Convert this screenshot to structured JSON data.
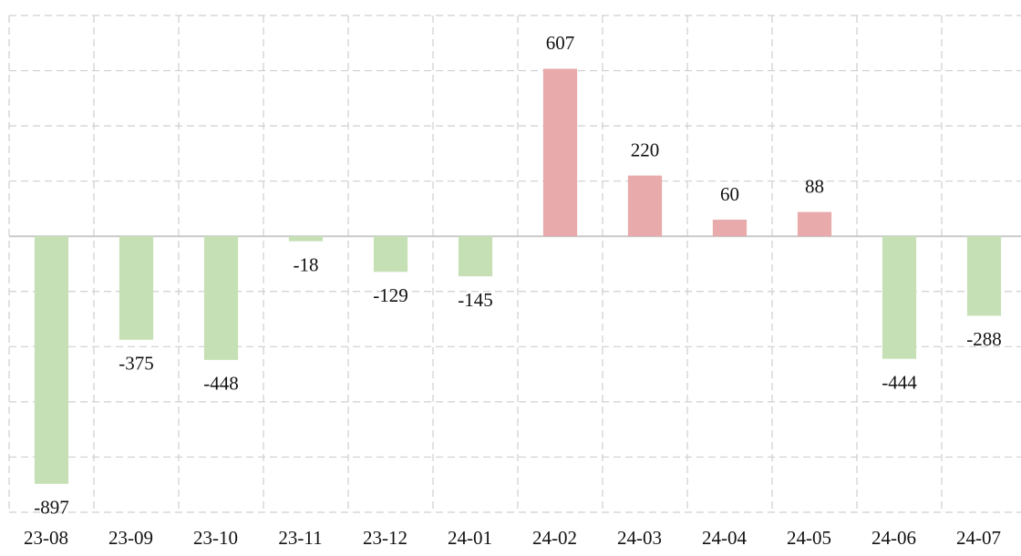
{
  "chart_data": {
    "type": "bar",
    "categories": [
      "23-08",
      "23-09",
      "23-10",
      "23-11",
      "23-12",
      "24-01",
      "24-02",
      "24-03",
      "24-04",
      "24-05",
      "24-06",
      "24-07"
    ],
    "values": [
      -897,
      -375,
      -448,
      -18,
      -129,
      -145,
      607,
      220,
      60,
      88,
      -444,
      -288
    ],
    "positive_color": "#e8aaaa",
    "negative_color": "#c6e0b5",
    "ylim": [
      -1000,
      800
    ],
    "yticks": [
      -1000,
      -800,
      -600,
      -400,
      -200,
      0,
      200,
      400,
      600,
      800
    ],
    "grid": true
  }
}
